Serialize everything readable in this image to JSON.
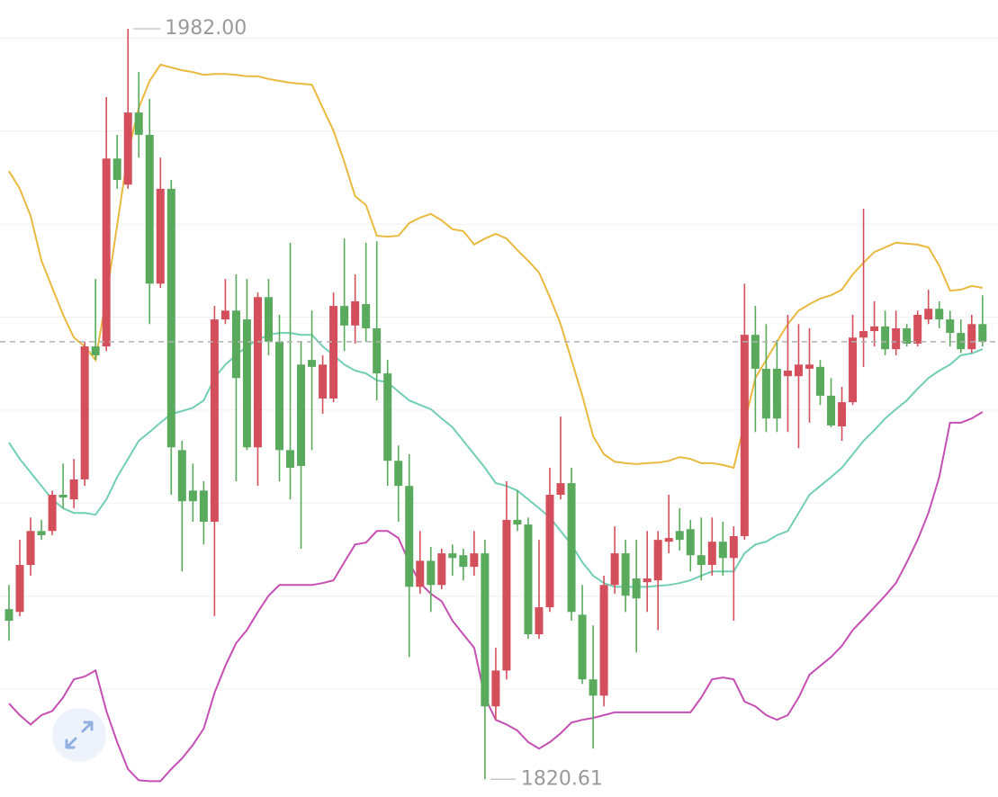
{
  "chart_data": {
    "type": "candlestick",
    "open": [
      1857.2,
      1856.6,
      1866.7,
      1874.0,
      1874.0,
      1881.8,
      1880.8,
      1885.1,
      1913.7,
      1913.7,
      1954.1,
      1948.5,
      1964.0,
      1959.2,
      1927.2,
      1947.6,
      1891.4,
      1882.7,
      1882.7,
      1876.0,
      1919.5,
      1921.4,
      1919.5,
      1892.0,
      1924.3,
      1914.7,
      1891.4,
      1909.8,
      1910.8,
      1902.5,
      1902.5,
      1922.4,
      1918.2,
      1922.8,
      1917.6,
      1907.9,
      1889.1,
      1883.7,
      1862.0,
      1867.6,
      1862.4,
      1869.2,
      1868.8,
      1866.3,
      1869.2,
      1836.3,
      1844.0,
      1876.4,
      1875.4,
      1851.8,
      1857.6,
      1881.8,
      1884.3,
      1856.0,
      1842.1,
      1838.6,
      1862.4,
      1869.2,
      1863.8,
      1863.0,
      1863.4,
      1871.7,
      1874.0,
      1874.4,
      1868.8,
      1866.7,
      1871.7,
      1868.2,
      1872.9,
      1916.2,
      1908.9,
      1908.9,
      1907.3,
      1907.3,
      1908.9,
      1909.3,
      1903.1,
      1896.5,
      1901.7,
      1915.6,
      1917.0,
      1918.0,
      1913.1,
      1917.6,
      1914.3,
      1919.5,
      1921.8,
      1919.5,
      1916.6,
      1913.1,
      1918.5
    ],
    "high": [
      1862.4,
      1872.1,
      1876.9,
      1876.4,
      1882.7,
      1888.5,
      1889.5,
      1914.7,
      1928.2,
      1967.3,
      1959.2,
      1982.0,
      1972.7,
      1966.9,
      1954.3,
      1949.5,
      1893.4,
      1888.5,
      1884.7,
      1922.4,
      1928.2,
      1929.2,
      1928.2,
      1925.3,
      1928.2,
      1920.5,
      1936.0,
      1914.7,
      1921.4,
      1911.8,
      1925.3,
      1936.9,
      1929.2,
      1936.0,
      1936.3,
      1910.8,
      1892.4,
      1890.5,
      1874.0,
      1870.6,
      1870.2,
      1871.1,
      1870.2,
      1874.0,
      1872.1,
      1848.9,
      1884.7,
      1882.7,
      1876.9,
      1872.1,
      1887.6,
      1898.6,
      1887.6,
      1862.4,
      1853.7,
      1864.4,
      1875.0,
      1872.1,
      1872.1,
      1874.0,
      1874.0,
      1881.8,
      1878.9,
      1876.4,
      1876.9,
      1876.9,
      1876.0,
      1875.0,
      1927.2,
      1922.4,
      1918.5,
      1915.1,
      1920.5,
      1918.5,
      1917.6,
      1910.8,
      1906.9,
      1905.0,
      1920.5,
      1943.3,
      1923.4,
      1921.4,
      1921.4,
      1918.5,
      1921.4,
      1925.9,
      1923.4,
      1921.4,
      1919.5,
      1920.5,
      1924.7
    ],
    "low": [
      1850.4,
      1855.7,
      1864.4,
      1872.1,
      1873.1,
      1878.9,
      1878.9,
      1883.7,
      1910.8,
      1912.7,
      1947.6,
      1947.6,
      1954.3,
      1918.5,
      1926.3,
      1881.8,
      1865.3,
      1876.0,
      1871.1,
      1855.7,
      1918.5,
      1884.7,
      1891.4,
      1883.7,
      1911.8,
      1884.7,
      1880.8,
      1870.2,
      1891.4,
      1899.2,
      1901.7,
      1912.7,
      1914.3,
      1914.7,
      1902.1,
      1883.7,
      1876.0,
      1846.9,
      1860.5,
      1856.6,
      1861.5,
      1864.4,
      1863.4,
      1864.4,
      1820.61,
      1833.4,
      1842.1,
      1874.0,
      1850.8,
      1850.8,
      1856.6,
      1880.8,
      1854.7,
      1841.1,
      1827.2,
      1836.3,
      1860.5,
      1856.6,
      1847.9,
      1856.6,
      1852.7,
      1869.2,
      1869.8,
      1865.3,
      1863.4,
      1864.4,
      1864.4,
      1854.7,
      1872.1,
      1895.3,
      1895.3,
      1895.3,
      1895.3,
      1891.8,
      1897.3,
      1901.1,
      1896.3,
      1893.4,
      1901.1,
      1909.3,
      1913.7,
      1911.8,
      1911.8,
      1913.7,
      1913.7,
      1918.5,
      1917.6,
      1913.7,
      1912.3,
      1912.3,
      1913.7
    ],
    "close": [
      1854.7,
      1866.7,
      1874.0,
      1873.1,
      1881.8,
      1881.2,
      1885.1,
      1913.7,
      1911.8,
      1954.1,
      1949.5,
      1964.0,
      1959.2,
      1927.2,
      1947.6,
      1892.0,
      1880.4,
      1880.4,
      1876.0,
      1919.5,
      1921.4,
      1906.9,
      1892.0,
      1924.3,
      1914.7,
      1891.4,
      1887.6,
      1888.0,
      1909.3,
      1909.8,
      1922.4,
      1918.2,
      1923.4,
      1917.6,
      1907.9,
      1889.1,
      1883.7,
      1862.0,
      1867.6,
      1862.4,
      1869.2,
      1868.2,
      1866.3,
      1869.2,
      1836.3,
      1844.0,
      1876.4,
      1875.4,
      1851.8,
      1857.6,
      1881.8,
      1884.3,
      1856.6,
      1842.1,
      1838.6,
      1862.4,
      1869.2,
      1860.1,
      1859.5,
      1863.8,
      1872.1,
      1872.5,
      1872.1,
      1868.8,
      1866.7,
      1871.7,
      1868.2,
      1872.9,
      1916.2,
      1908.9,
      1898.2,
      1898.2,
      1908.5,
      1909.8,
      1909.8,
      1903.1,
      1896.7,
      1901.7,
      1915.6,
      1917.0,
      1918.0,
      1913.1,
      1917.6,
      1914.3,
      1920.5,
      1921.8,
      1919.5,
      1916.6,
      1913.1,
      1918.5,
      1914.7
    ],
    "up_color": "#d44f5c",
    "down_color": "#5aaa5e",
    "overlays": [
      {
        "color": "#e9b940",
        "values": [
          1951.4,
          1947.6,
          1941.8,
          1932.1,
          1926.3,
          1920.5,
          1915.6,
          1913.7,
          1910.8,
          1924.3,
          1939.8,
          1955.3,
          1965.0,
          1970.8,
          1974.3,
          1973.7,
          1973.1,
          1972.7,
          1972.1,
          1972.3,
          1972.3,
          1972.1,
          1971.8,
          1971.8,
          1971.2,
          1970.8,
          1970.4,
          1970.2,
          1970.0,
          1965.0,
          1960.1,
          1953.4,
          1946.0,
          1944.1,
          1937.5,
          1937.3,
          1937.5,
          1940.2,
          1941.4,
          1942.2,
          1940.8,
          1938.9,
          1938.5,
          1935.6,
          1936.9,
          1937.9,
          1936.9,
          1934.4,
          1932.1,
          1929.6,
          1924.3,
          1918.5,
          1910.8,
          1903.1,
          1894.4,
          1890.5,
          1888.9,
          1888.6,
          1888.4,
          1888.6,
          1888.7,
          1889.1,
          1889.9,
          1889.5,
          1888.6,
          1888.6,
          1888.2,
          1887.6,
          1897.3,
          1906.9,
          1910.8,
          1914.7,
          1918.5,
          1921.4,
          1922.8,
          1924.0,
          1924.7,
          1925.9,
          1929.2,
          1931.7,
          1934.0,
          1935.0,
          1936.0,
          1935.8,
          1935.6,
          1935.0,
          1931.1,
          1925.7,
          1925.9,
          1926.7,
          1926.3
        ]
      },
      {
        "color": "#72cfb3",
        "values": [
          1893.0,
          1889.5,
          1886.6,
          1883.7,
          1880.8,
          1878.9,
          1877.9,
          1877.9,
          1877.5,
          1880.8,
          1885.6,
          1889.5,
          1893.4,
          1895.3,
          1897.3,
          1899.2,
          1899.8,
          1900.5,
          1902.1,
          1906.9,
          1909.8,
          1911.8,
          1913.7,
          1915.1,
          1916.2,
          1916.6,
          1916.6,
          1916.2,
          1916.2,
          1913.7,
          1911.8,
          1909.8,
          1908.5,
          1907.9,
          1906.4,
          1906.0,
          1904.0,
          1902.1,
          1901.1,
          1900.2,
          1898.2,
          1896.3,
          1893.4,
          1890.5,
          1887.6,
          1884.3,
          1883.7,
          1882.7,
          1880.8,
          1878.9,
          1876.9,
          1874.0,
          1871.1,
          1867.3,
          1864.4,
          1862.8,
          1862.0,
          1862.0,
          1862.0,
          1862.0,
          1862.2,
          1862.4,
          1862.8,
          1863.4,
          1864.4,
          1865.3,
          1865.3,
          1865.3,
          1869.2,
          1871.1,
          1871.7,
          1873.1,
          1874.0,
          1877.9,
          1881.8,
          1883.7,
          1885.6,
          1887.6,
          1890.5,
          1893.4,
          1895.7,
          1898.2,
          1900.2,
          1902.1,
          1904.6,
          1906.9,
          1908.5,
          1909.8,
          1911.8,
          1912.2,
          1913.1
        ]
      },
      {
        "color": "#c64fb3",
        "values": [
          1836.9,
          1834.4,
          1832.4,
          1834.4,
          1835.3,
          1838.2,
          1842.1,
          1842.7,
          1844.0,
          1835.3,
          1828.6,
          1822.8,
          1820.4,
          1820.2,
          1820.2,
          1822.8,
          1825.1,
          1828.0,
          1831.5,
          1839.2,
          1845.0,
          1849.9,
          1852.7,
          1856.6,
          1860.1,
          1862.4,
          1862.4,
          1862.4,
          1862.4,
          1862.8,
          1863.4,
          1867.3,
          1871.1,
          1871.5,
          1874.0,
          1874.0,
          1872.5,
          1867.3,
          1862.8,
          1860.5,
          1858.9,
          1854.7,
          1851.8,
          1848.9,
          1838.2,
          1833.4,
          1832.4,
          1831.1,
          1828.6,
          1827.2,
          1828.6,
          1830.5,
          1832.8,
          1833.4,
          1833.8,
          1834.4,
          1835.0,
          1835.0,
          1835.0,
          1835.0,
          1835.0,
          1835.0,
          1835.0,
          1835.0,
          1838.2,
          1842.1,
          1842.5,
          1842.1,
          1837.3,
          1836.3,
          1834.4,
          1833.4,
          1834.4,
          1838.2,
          1843.1,
          1845.0,
          1846.9,
          1849.3,
          1852.7,
          1855.1,
          1857.6,
          1860.1,
          1862.8,
          1867.3,
          1872.1,
          1877.9,
          1885.6,
          1897.3,
          1897.3,
          1898.2,
          1899.6
        ]
      }
    ],
    "ylim": [
      1816.8,
      1988.2
    ],
    "yticks": [
      1840,
      1860,
      1880,
      1900,
      1920,
      1940,
      1960,
      1980
    ],
    "grid": true,
    "high_label": "1982.00",
    "low_label": "1820.61"
  }
}
